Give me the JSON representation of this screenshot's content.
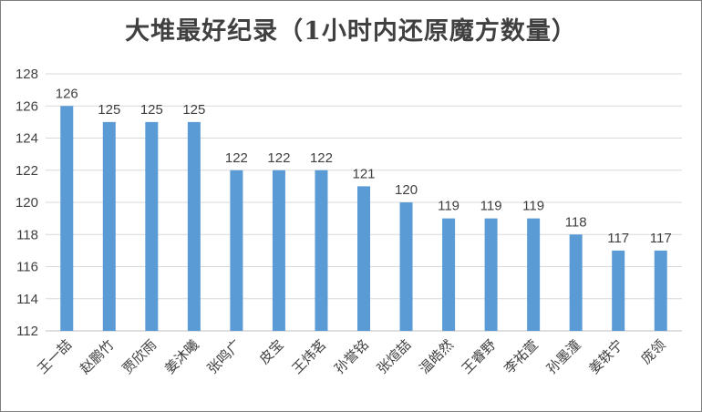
{
  "chart_data": {
    "type": "bar",
    "title": "大堆最好纪录（1小时内还原魔方数量）",
    "categories": [
      "王一喆",
      "赵鹏竹",
      "贾欣雨",
      "姜沐曦",
      "张鸣广",
      "皮宝",
      "王炜茗",
      "孙誉铭",
      "张煊喆",
      "温皓然",
      "王睿野",
      "李祐萱",
      "孙墨潼",
      "姜轶宁",
      "庞领"
    ],
    "values": [
      126,
      125,
      125,
      125,
      122,
      122,
      122,
      121,
      120,
      119,
      119,
      119,
      118,
      117,
      117
    ],
    "ylim": [
      112,
      128
    ],
    "yticks": [
      112,
      114,
      116,
      118,
      120,
      122,
      124,
      126,
      128
    ],
    "grid": true,
    "legend": "none",
    "bar_color": "#5b9bd5",
    "grid_color": "#d9d9d9",
    "axis_color": "#bfbfbf"
  }
}
